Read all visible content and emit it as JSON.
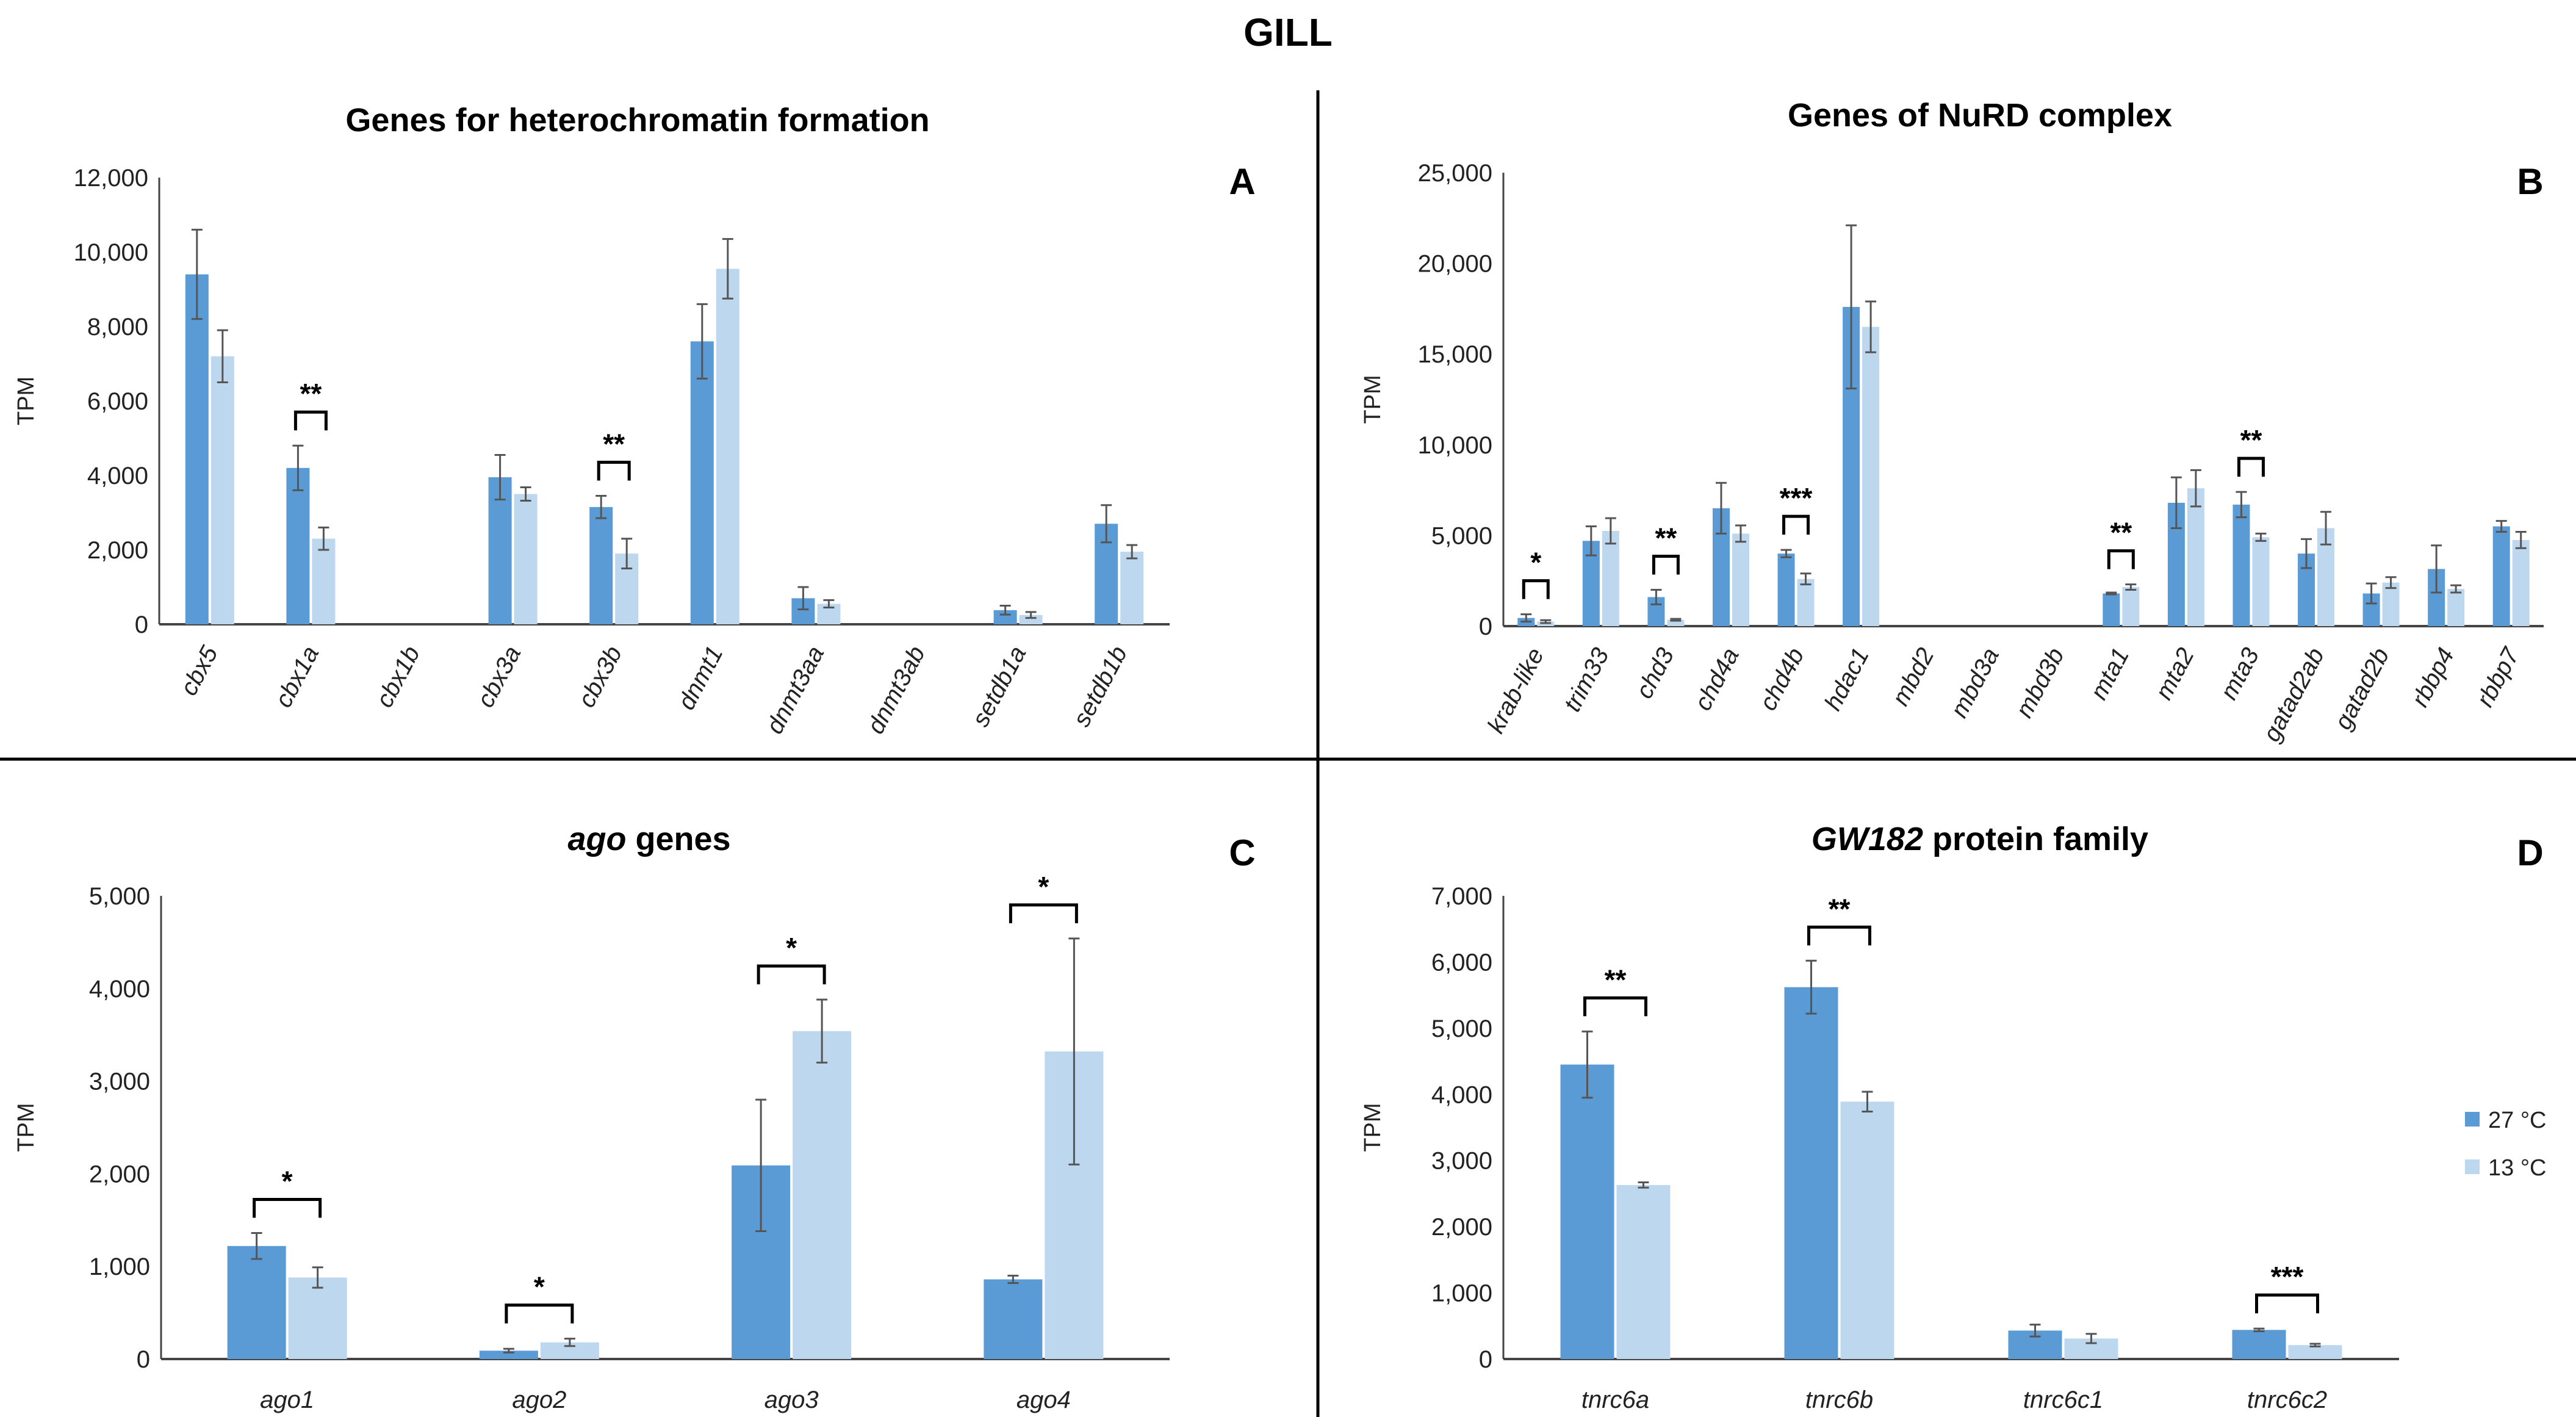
{
  "figure_title": "GILL",
  "colors": {
    "c27": "#5B9BD5",
    "c13": "#BDD7EE",
    "err": "#555555"
  },
  "legend": [
    "27 °C",
    "13 °C"
  ],
  "chart_data": [
    {
      "type": "bar",
      "panel": "A",
      "title": "Genes for heterochromatin formation",
      "title_italic_prefix": "",
      "ylabel": "TPM",
      "ylim": [
        0,
        12000
      ],
      "ytick_step": 2000,
      "rotate_labels": true,
      "categories": [
        "cbx5",
        "cbx1a",
        "cbx1b",
        "cbx3a",
        "cbx3b",
        "dnmt1",
        "dnmt3aa",
        "dnmt3ab",
        "setdb1a",
        "setdb1b"
      ],
      "series": [
        {
          "name": "27 °C",
          "values": [
            9400,
            4200,
            0,
            3950,
            3150,
            7600,
            700,
            0,
            380,
            2700
          ],
          "errors": [
            1200,
            600,
            0,
            600,
            300,
            1000,
            300,
            0,
            120,
            500
          ]
        },
        {
          "name": "13 °C",
          "values": [
            7200,
            2300,
            0,
            3500,
            1900,
            9550,
            550,
            0,
            250,
            1950
          ],
          "errors": [
            700,
            300,
            0,
            180,
            400,
            800,
            100,
            0,
            80,
            180
          ]
        }
      ],
      "significance": [
        {
          "category": "cbx1a",
          "label": "**"
        },
        {
          "category": "cbx3b",
          "label": "**"
        }
      ]
    },
    {
      "type": "bar",
      "panel": "B",
      "title": "Genes of NuRD complex",
      "title_italic_prefix": "",
      "ylabel": "TPM",
      "ylim": [
        0,
        25000
      ],
      "ytick_step": 5000,
      "rotate_labels": true,
      "categories": [
        "krab-like",
        "trim33",
        "chd3",
        "chd4a",
        "chd4b",
        "hdac1",
        "mbd2",
        "mbd3a",
        "mbd3b",
        "mta1",
        "mta2",
        "mta3",
        "gatad2ab",
        "gatad2b",
        "rbbp4",
        "rbbp7"
      ],
      "series": [
        {
          "name": "27 °C",
          "values": [
            450,
            4700,
            1600,
            6500,
            4000,
            17600,
            0,
            0,
            0,
            1800,
            6800,
            6700,
            4000,
            1800,
            3150,
            5500
          ],
          "errors": [
            200,
            800,
            400,
            1400,
            200,
            4500,
            0,
            0,
            0,
            50,
            1400,
            700,
            800,
            550,
            1300,
            300
          ]
        },
        {
          "name": "13 °C",
          "values": [
            250,
            5250,
            350,
            5100,
            2600,
            16500,
            0,
            0,
            0,
            2150,
            7600,
            4900,
            5400,
            2400,
            2050,
            4750
          ],
          "errors": [
            80,
            700,
            50,
            450,
            300,
            1400,
            0,
            0,
            0,
            150,
            1000,
            200,
            900,
            300,
            200,
            450
          ]
        }
      ],
      "significance": [
        {
          "category": "krab-like",
          "label": "*"
        },
        {
          "category": "chd3",
          "label": "**"
        },
        {
          "category": "chd4b",
          "label": "***"
        },
        {
          "category": "mta1",
          "label": "**"
        },
        {
          "category": "mta3",
          "label": "**"
        }
      ]
    },
    {
      "type": "bar",
      "panel": "C",
      "title": " genes",
      "title_italic_prefix": "ago",
      "ylabel": "TPM",
      "ylim": [
        0,
        5000
      ],
      "ytick_step": 1000,
      "rotate_labels": false,
      "categories": [
        "ago1",
        "ago2",
        "ago3",
        "ago4"
      ],
      "series": [
        {
          "name": "27 °C",
          "values": [
            1220,
            90,
            2090,
            860
          ],
          "errors": [
            140,
            20,
            710,
            40
          ]
        },
        {
          "name": "13 °C",
          "values": [
            880,
            180,
            3540,
            3320
          ],
          "errors": [
            110,
            40,
            340,
            1220
          ]
        }
      ],
      "significance": [
        {
          "category": "ago1",
          "label": "*"
        },
        {
          "category": "ago2",
          "label": "*"
        },
        {
          "category": "ago3",
          "label": "*"
        },
        {
          "category": "ago4",
          "label": "*"
        }
      ]
    },
    {
      "type": "bar",
      "panel": "D",
      "title": " protein family",
      "title_italic_prefix": "GW182",
      "ylabel": "TPM",
      "ylim": [
        0,
        7000
      ],
      "ytick_step": 1000,
      "rotate_labels": false,
      "categories": [
        "tnrc6a",
        "tnrc6b",
        "tnrc6c1",
        "tnrc6c2"
      ],
      "series": [
        {
          "name": "27 °C",
          "values": [
            4450,
            5620,
            430,
            440
          ],
          "errors": [
            500,
            400,
            90,
            20
          ]
        },
        {
          "name": "13 °C",
          "values": [
            2630,
            3890,
            310,
            210
          ],
          "errors": [
            40,
            150,
            70,
            20
          ]
        }
      ],
      "significance": [
        {
          "category": "tnrc6a",
          "label": "**"
        },
        {
          "category": "tnrc6b",
          "label": "**"
        },
        {
          "category": "tnrc6c2",
          "label": "***"
        }
      ]
    }
  ]
}
